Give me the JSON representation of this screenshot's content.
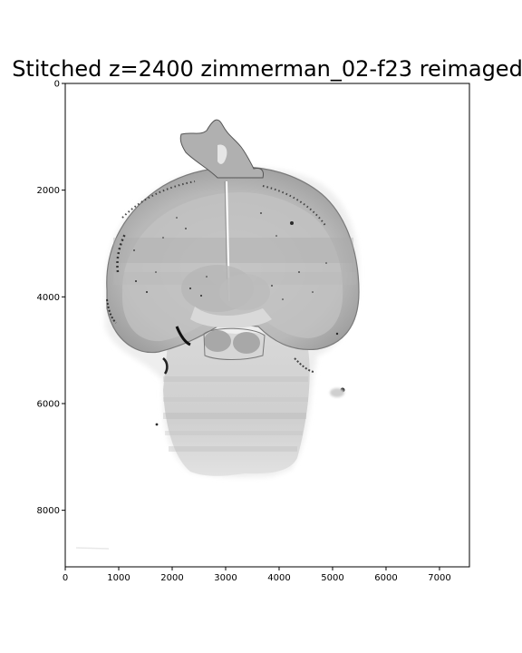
{
  "title": "Stitched z=2400 zimmerman_02-f23 reimaged",
  "chart_data": {
    "type": "image",
    "title": "Stitched z=2400 zimmerman_02-f23 reimaged",
    "xlabel": "",
    "ylabel": "",
    "xlim": [
      0,
      7560
    ],
    "ylim": [
      9060,
      0
    ],
    "x_ticks": [
      "0",
      "1000",
      "2000",
      "3000",
      "4000",
      "5000",
      "6000",
      "7000"
    ],
    "x_tick_values": [
      0,
      1000,
      2000,
      3000,
      4000,
      5000,
      6000,
      7000
    ],
    "y_ticks": [
      "0",
      "2000",
      "4000",
      "6000",
      "8000"
    ],
    "y_tick_values": [
      0,
      2000,
      4000,
      6000,
      8000
    ],
    "colormap": "gray_r",
    "grid": false
  }
}
